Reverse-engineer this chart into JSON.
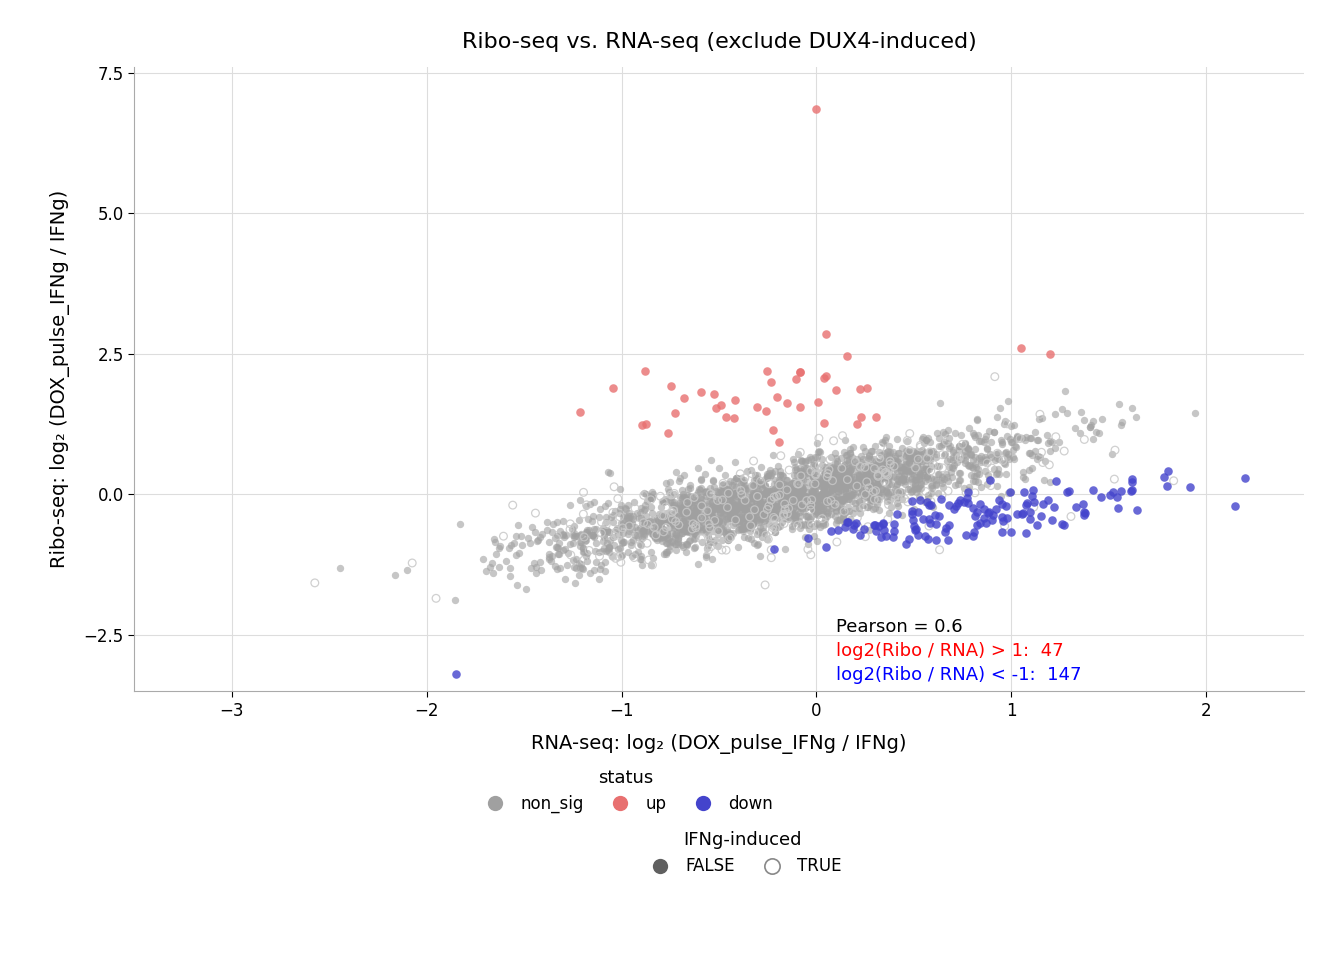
{
  "title": "Ribo-seq vs. RNA-seq (exclude DUX4-induced)",
  "xlabel": "RNA-seq: log₂ (DOX_pulse_IFNg / IFNg)",
  "ylabel": "Ribo-seq: log₂ (DOX_pulse_IFNg / IFNg)",
  "xlim": [
    -3.5,
    2.5
  ],
  "ylim": [
    -3.5,
    7.6
  ],
  "xticks": [
    -3,
    -2,
    -1,
    0,
    1,
    2
  ],
  "yticks": [
    -2.5,
    0.0,
    2.5,
    5.0,
    7.5
  ],
  "pearson": "0.6",
  "n_up": 47,
  "n_down": 147,
  "color_nonsig_false": "#a0a0a0",
  "color_nonsig_true": "#c8c8c8",
  "color_up": "#e87070",
  "color_down": "#4444cc",
  "alpha_nonsig": 0.6,
  "alpha_colored": 0.8,
  "dot_size": 28,
  "dot_size_colored": 38,
  "background_color": "#ffffff",
  "grid_color": "#dddddd",
  "seed": 42,
  "n_nonsig_false": 2200,
  "n_nonsig_true": 250
}
